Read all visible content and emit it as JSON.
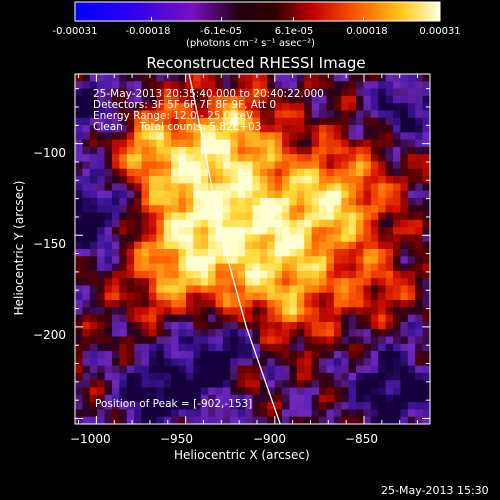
{
  "colorbar": {
    "min": -0.00031,
    "max": 0.00031,
    "tick_labels": [
      "-0.00031",
      "-0.00018",
      "-6.1e-05",
      "6.1e-05",
      "0.00018",
      "0.00031"
    ],
    "tick_values": [
      -0.00031,
      -0.00018,
      -6.1e-05,
      6.1e-05,
      0.00018,
      0.00031
    ],
    "unit_label": "(photons cm⁻² s⁻¹ asec⁻²)"
  },
  "chart_data": {
    "type": "heatmap",
    "title": "Reconstructed RHESSI Image",
    "xlabel": "Heliocentric X (arcsec)",
    "ylabel": "Heliocentric Y (arcsec)",
    "xlim": [
      -1012,
      -813
    ],
    "ylim": [
      -253,
      -62
    ],
    "x_ticks": [
      -1000,
      -950,
      -900,
      -850
    ],
    "x_tick_labels": [
      "−1000",
      "−950",
      "−900",
      "−850"
    ],
    "y_ticks": [
      -200,
      -150,
      -100
    ],
    "y_tick_labels": [
      "−200",
      "−150",
      "−100"
    ],
    "colormap": "rhessi-flame",
    "peak": [
      -902,
      -153
    ],
    "limb_curve": [
      [
        -948,
        -62
      ],
      [
        -940,
        -100
      ],
      [
        -930,
        -150
      ],
      [
        -916,
        -200
      ],
      [
        -897,
        -253
      ]
    ],
    "annotations": [
      "25-May-2013 20:35:40.000 to 20:40:22.000",
      "Detectors: 3F 5F 6F 7F 8F 9F, Att 0",
      "Energy Range: 12.0 - 25.0 keV",
      "Clean     Total counts: 5.82E+03"
    ],
    "peak_label": "Position of Peak = [-902,-153]"
  },
  "footer_date": "25-May-2013 15:30"
}
